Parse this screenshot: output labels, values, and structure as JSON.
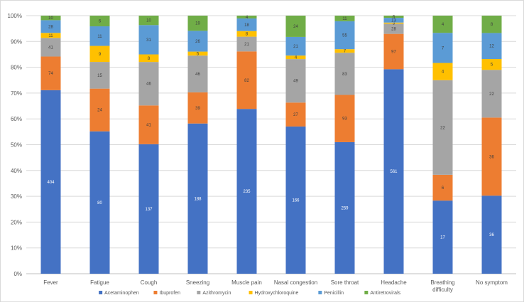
{
  "chart_data": {
    "type": "bar",
    "stacked": "percent",
    "title": "",
    "xlabel": "",
    "ylabel": "",
    "ylim": [
      0,
      100
    ],
    "yticks": [
      "0%",
      "10%",
      "20%",
      "30%",
      "40%",
      "50%",
      "60%",
      "70%",
      "80%",
      "90%",
      "100%"
    ],
    "grid": true,
    "legend_position": "bottom",
    "categories": [
      [
        "Fever"
      ],
      [
        "Fatigue"
      ],
      [
        "Cough"
      ],
      [
        "Sneezing"
      ],
      [
        "Muscle pain"
      ],
      [
        "Nasal congestion"
      ],
      [
        "Sore throat"
      ],
      [
        "Headache"
      ],
      [
        "Breathing",
        "difficulty"
      ],
      [
        "No symptom"
      ]
    ],
    "series": [
      {
        "name": "Acetaminophen",
        "color": "#4472C4",
        "label_color": "#ffffff",
        "values": [
          404,
          80,
          137,
          188,
          235,
          166,
          259,
          561,
          17,
          36
        ]
      },
      {
        "name": "Ibuprofen",
        "color": "#ED7D31",
        "label_color": "#404040",
        "values": [
          74,
          24,
          41,
          39,
          82,
          27,
          93,
          97,
          6,
          36
        ]
      },
      {
        "name": "Azithromycin",
        "color": "#A5A5A5",
        "label_color": "#404040",
        "values": [
          41,
          15,
          46,
          46,
          21,
          49,
          83,
          28,
          22,
          22
        ]
      },
      {
        "name": "Hydroxychloroquine",
        "color": "#FFC000",
        "label_color": "#404040",
        "values": [
          11,
          9,
          8,
          5,
          8,
          4,
          7,
          3,
          4,
          5
        ]
      },
      {
        "name": "Penicillin",
        "color": "#5B9BD5",
        "label_color": "#404040",
        "values": [
          28,
          11,
          31,
          26,
          18,
          21,
          55,
          13,
          7,
          12
        ]
      },
      {
        "name": "Antiretrovirals",
        "color": "#70AD47",
        "label_color": "#404040",
        "values": [
          10,
          6,
          10,
          19,
          4,
          24,
          11,
          6,
          4,
          8
        ]
      }
    ]
  }
}
